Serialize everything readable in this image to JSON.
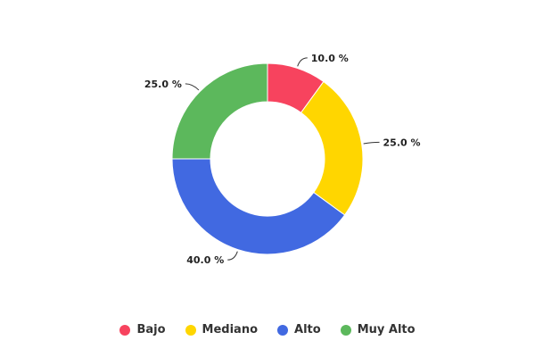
{
  "chart_data": {
    "type": "pie",
    "variant": "donut",
    "title": "",
    "categories": [
      "Bajo",
      "Mediano",
      "Alto",
      "Muy Alto"
    ],
    "values": [
      10.0,
      25.0,
      40.0,
      25.0
    ],
    "data_labels": [
      "10.0 %",
      "25.0 %",
      "40.0 %",
      "25.0 %"
    ],
    "colors": [
      "#f7435e",
      "#ffd600",
      "#4169e1",
      "#5cb85c"
    ],
    "legend_position": "bottom-center"
  },
  "legend": {
    "items": [
      {
        "label": "Bajo",
        "color": "#f7435e"
      },
      {
        "label": "Mediano",
        "color": "#ffd600"
      },
      {
        "label": "Alto",
        "color": "#4169e1"
      },
      {
        "label": "Muy Alto",
        "color": "#5cb85c"
      }
    ]
  }
}
